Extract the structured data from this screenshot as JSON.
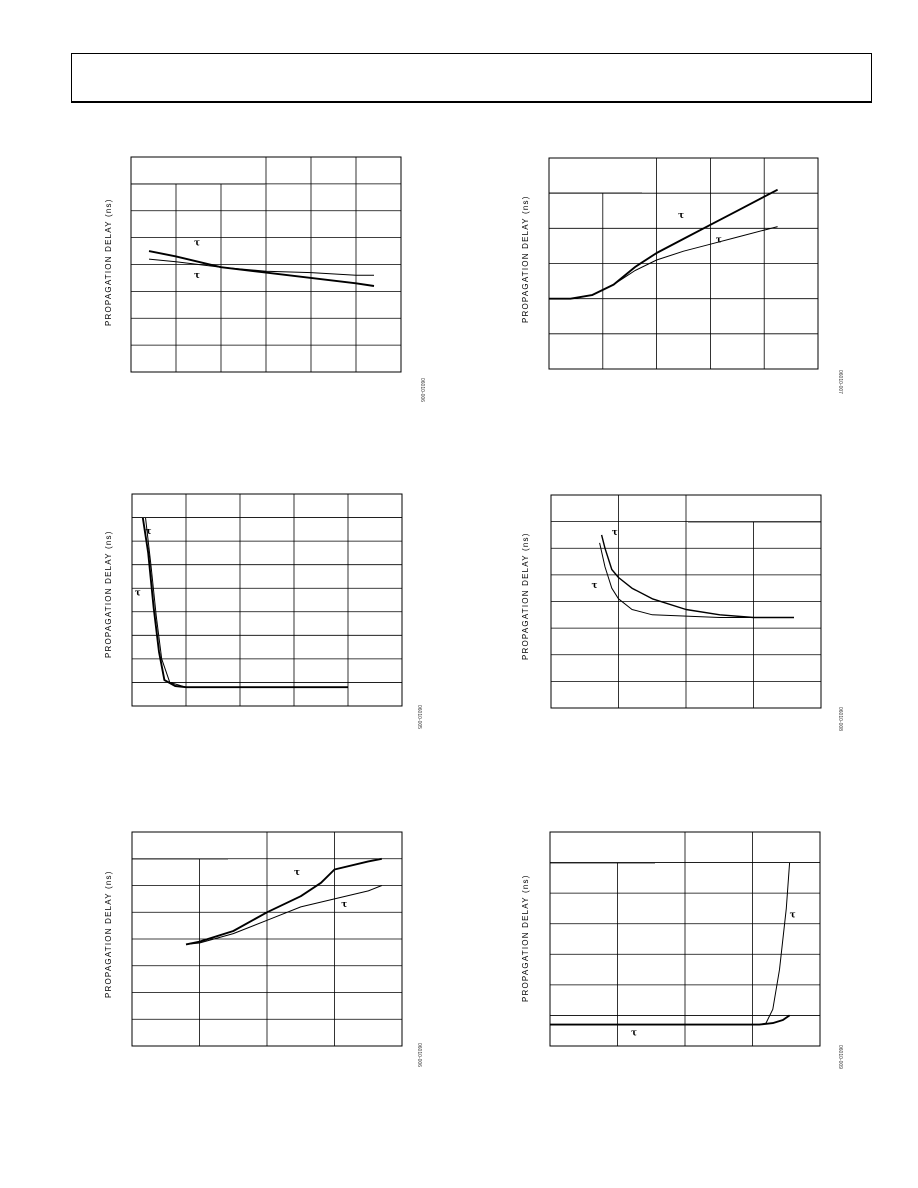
{
  "header": {
    "box": ""
  },
  "chart_data": [
    {
      "type": "line",
      "ylabel": "PROPAGATION DELAY (ns)",
      "figure_id": "06010-006",
      "xlim": [
        0,
        6
      ],
      "ylim": [
        0,
        8
      ],
      "x_divisions": 6,
      "y_divisions": 8,
      "series": [
        {
          "label": "τ",
          "label_at": [
            1.4,
            4.7
          ],
          "width": 1.9,
          "points": [
            [
              0.4,
              4.5
            ],
            [
              1.0,
              4.3
            ],
            [
              2.0,
              3.9
            ],
            [
              3.0,
              3.7
            ],
            [
              4.0,
              3.5
            ],
            [
              5.0,
              3.3
            ],
            [
              5.4,
              3.2
            ]
          ]
        },
        {
          "label": "τ",
          "label_at": [
            1.4,
            3.5
          ],
          "width": 1.0,
          "points": [
            [
              0.4,
              4.2
            ],
            [
              1.0,
              4.1
            ],
            [
              2.0,
              3.9
            ],
            [
              3.0,
              3.75
            ],
            [
              4.0,
              3.7
            ],
            [
              5.0,
              3.6
            ],
            [
              5.4,
              3.6
            ]
          ]
        }
      ]
    },
    {
      "type": "line",
      "ylabel": "PROPAGATION DELAY (ns)",
      "figure_id": "06010-007",
      "xlim": [
        0,
        5
      ],
      "ylim": [
        0,
        6
      ],
      "x_divisions": 5,
      "y_divisions": 6,
      "series": [
        {
          "label": "τ",
          "label_at": [
            2.4,
            4.3
          ],
          "width": 1.9,
          "points": [
            [
              0,
              2.0
            ],
            [
              0.4,
              2.0
            ],
            [
              0.8,
              2.1
            ],
            [
              1.2,
              2.4
            ],
            [
              1.6,
              2.9
            ],
            [
              2.0,
              3.3
            ],
            [
              2.5,
              3.7
            ],
            [
              3.0,
              4.1
            ],
            [
              3.5,
              4.5
            ],
            [
              4.0,
              4.9
            ],
            [
              4.25,
              5.1
            ]
          ]
        },
        {
          "label": "τ",
          "label_at": [
            3.1,
            3.6
          ],
          "width": 1.0,
          "points": [
            [
              0,
              2.0
            ],
            [
              0.4,
              2.0
            ],
            [
              0.8,
              2.1
            ],
            [
              1.2,
              2.4
            ],
            [
              1.6,
              2.8
            ],
            [
              2.0,
              3.1
            ],
            [
              2.5,
              3.35
            ],
            [
              3.0,
              3.55
            ],
            [
              3.5,
              3.75
            ],
            [
              4.0,
              3.95
            ],
            [
              4.25,
              4.05
            ]
          ]
        }
      ]
    },
    {
      "type": "line",
      "ylabel": "PROPAGATION DELAY (ns)",
      "figure_id": "06010-005",
      "xlim": [
        0,
        5
      ],
      "ylim": [
        0,
        9
      ],
      "x_divisions": 5,
      "y_divisions": 9,
      "series": [
        {
          "label": "τ",
          "label_at": [
            0.25,
            7.3
          ],
          "width": 1.9,
          "points": [
            [
              0.2,
              8.0
            ],
            [
              0.3,
              6.5
            ],
            [
              0.4,
              4.2
            ],
            [
              0.5,
              2.3
            ],
            [
              0.6,
              1.1
            ],
            [
              0.8,
              0.85
            ],
            [
              1.0,
              0.8
            ],
            [
              3.0,
              0.8
            ],
            [
              4.0,
              0.8
            ]
          ]
        },
        {
          "label": "τ",
          "label_at": [
            0.05,
            4.7
          ],
          "width": 1.0,
          "points": [
            [
              0.25,
              8.0
            ],
            [
              0.35,
              6.0
            ],
            [
              0.45,
              3.8
            ],
            [
              0.55,
              2.0
            ],
            [
              0.7,
              1.0
            ],
            [
              1.0,
              0.8
            ],
            [
              3.0,
              0.8
            ],
            [
              4.0,
              0.8
            ]
          ]
        }
      ]
    },
    {
      "type": "line",
      "ylabel": "PROPAGATION DELAY (ns)",
      "figure_id": "06010-008",
      "xlim": [
        0,
        4
      ],
      "ylim": [
        0,
        8
      ],
      "x_divisions": 4,
      "y_divisions": 8,
      "series": [
        {
          "label": "τ",
          "label_at": [
            0.9,
            6.5
          ],
          "width": 1.4,
          "points": [
            [
              0.75,
              6.5
            ],
            [
              0.8,
              6.0
            ],
            [
              0.9,
              5.2
            ],
            [
              1.0,
              4.9
            ],
            [
              1.2,
              4.5
            ],
            [
              1.5,
              4.1
            ],
            [
              2.0,
              3.7
            ],
            [
              2.5,
              3.5
            ],
            [
              3.0,
              3.4
            ],
            [
              3.6,
              3.4
            ]
          ]
        },
        {
          "label": "τ",
          "label_at": [
            0.6,
            4.5
          ],
          "width": 1.0,
          "points": [
            [
              0.72,
              6.2
            ],
            [
              0.8,
              5.3
            ],
            [
              0.9,
              4.5
            ],
            [
              1.0,
              4.1
            ],
            [
              1.2,
              3.7
            ],
            [
              1.5,
              3.5
            ],
            [
              2.0,
              3.45
            ],
            [
              2.5,
              3.4
            ],
            [
              3.0,
              3.4
            ],
            [
              3.6,
              3.4
            ]
          ]
        }
      ]
    },
    {
      "type": "line",
      "ylabel": "PROPAGATION DELAY (ns)",
      "figure_id": "06010-006",
      "xlim": [
        0,
        4
      ],
      "ylim": [
        0,
        8
      ],
      "x_divisions": 4,
      "y_divisions": 8,
      "series": [
        {
          "label": "τ",
          "label_at": [
            2.4,
            6.4
          ],
          "width": 1.9,
          "points": [
            [
              0.8,
              3.8
            ],
            [
              1.0,
              3.9
            ],
            [
              1.5,
              4.3
            ],
            [
              2.0,
              5.0
            ],
            [
              2.5,
              5.6
            ],
            [
              2.8,
              6.1
            ],
            [
              3.0,
              6.6
            ],
            [
              3.5,
              6.9
            ],
            [
              3.7,
              7.0
            ]
          ]
        },
        {
          "label": "τ",
          "label_at": [
            3.1,
            5.2
          ],
          "width": 1.0,
          "points": [
            [
              0.8,
              3.8
            ],
            [
              1.0,
              3.85
            ],
            [
              1.5,
              4.2
            ],
            [
              2.0,
              4.7
            ],
            [
              2.5,
              5.2
            ],
            [
              3.0,
              5.5
            ],
            [
              3.5,
              5.8
            ],
            [
              3.7,
              6.0
            ]
          ]
        }
      ]
    },
    {
      "type": "line",
      "ylabel": "PROPAGATION DELAY (ns)",
      "figure_id": "06010-009",
      "xlim": [
        0,
        4
      ],
      "ylim": [
        0,
        7
      ],
      "x_divisions": 4,
      "y_divisions": 7,
      "series": [
        {
          "label": "τ",
          "label_at": [
            3.55,
            4.2
          ],
          "width": 1.0,
          "points": [
            [
              0,
              0.7
            ],
            [
              2.5,
              0.7
            ],
            [
              3.1,
              0.7
            ],
            [
              3.2,
              0.75
            ],
            [
              3.3,
              1.2
            ],
            [
              3.4,
              2.5
            ],
            [
              3.5,
              4.5
            ],
            [
              3.55,
              6.0
            ]
          ]
        },
        {
          "label": "τ",
          "label_at": [
            1.2,
            0.35
          ],
          "width": 1.9,
          "points": [
            [
              0,
              0.7
            ],
            [
              2.5,
              0.7
            ],
            [
              3.1,
              0.7
            ],
            [
              3.3,
              0.75
            ],
            [
              3.45,
              0.85
            ],
            [
              3.55,
              1.0
            ]
          ]
        }
      ]
    }
  ]
}
